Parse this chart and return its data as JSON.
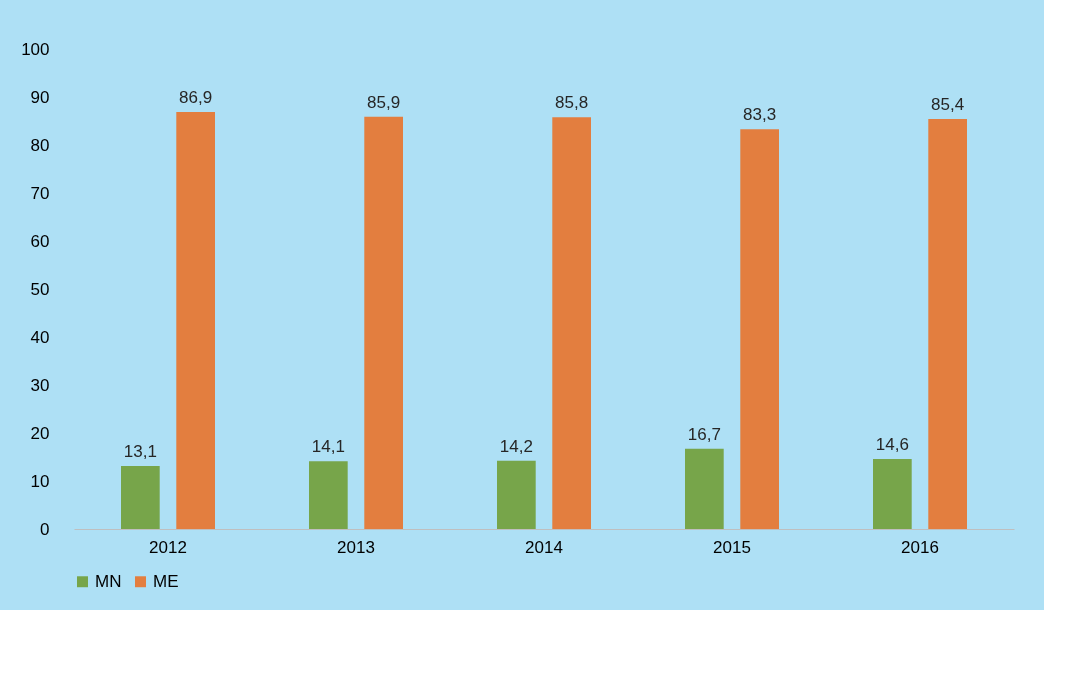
{
  "chart_data": {
    "type": "bar",
    "categories": [
      "2012",
      "2013",
      "2014",
      "2015",
      "2016"
    ],
    "series": [
      {
        "name": "MN",
        "color": "#77a54a",
        "values": [
          13.1,
          14.1,
          14.2,
          16.7,
          14.6
        ],
        "value_labels": [
          "13,1",
          "14,1",
          "14,2",
          "16,7",
          "14,6"
        ]
      },
      {
        "name": "ME",
        "color": "#e37e3f",
        "values": [
          86.9,
          85.9,
          85.8,
          83.3,
          85.4
        ],
        "value_labels": [
          "86,9",
          "85,9",
          "85,8",
          "83,3",
          "85,4"
        ]
      }
    ],
    "ylim": [
      0,
      100
    ],
    "yticks": [
      0,
      10,
      20,
      30,
      40,
      50,
      60,
      70,
      80,
      90,
      100
    ],
    "grid": false,
    "legend": "bottom"
  }
}
